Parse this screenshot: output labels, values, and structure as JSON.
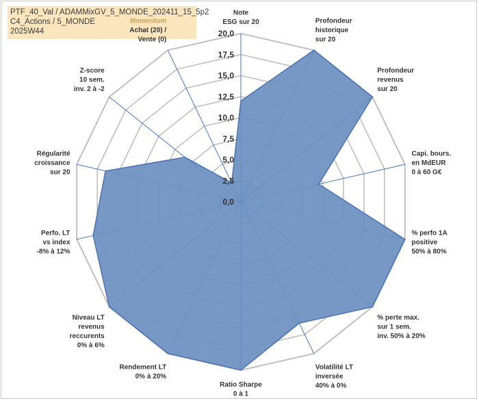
{
  "header": {
    "line1": "PTF_40_Val / ADAMMixGV_5_MONDE_202411_15_5p2",
    "line2": "C4_Actions / 5_MONDE",
    "line3": "2025W44"
  },
  "chart_data": {
    "type": "radar",
    "title": "PTF_40_Val / ADAMMixGV_5_MONDE_202411_15_5p2",
    "rlim": [
      0,
      20
    ],
    "rticks": [
      "0,0",
      "2,5",
      "5,0",
      "7,5",
      "10,0",
      "12,5",
      "15,0",
      "17,5",
      "20,0"
    ],
    "grid": true,
    "legend": "none",
    "colors": {
      "fill": "#6b8fbf",
      "stroke": "#4a72b0",
      "grid": "#bfbfbf",
      "axis": "#4472c4"
    },
    "categories": [
      [
        "Note",
        "ESG sur 20"
      ],
      [
        "Profondeur",
        "historique",
        "sur 20"
      ],
      [
        "Profondeur",
        "revenus",
        "sur 20"
      ],
      [
        "Capi. bours.",
        "en MdEUR",
        "0 à 60 G€"
      ],
      [
        "% perfo 1A",
        "positive",
        "50% à 80%"
      ],
      [
        "% perte max.",
        "sur 1 sem.",
        "inv. 50% à 20%"
      ],
      [
        "Volatilité LT",
        "inversée",
        "40% à 0%"
      ],
      [
        "Ratio Sharpe",
        "0 à 1"
      ],
      [
        "Rendement LT",
        "0% à 20%"
      ],
      [
        "Niveau LT",
        "revenus",
        "reccurents",
        "0% à 6%"
      ],
      [
        "Perfo. LT",
        "vs index",
        "-8% à 12%"
      ],
      [
        "Régularité",
        "croissance",
        "sur 20"
      ],
      [
        "Z-score",
        "10 sem.",
        "inv. 2 à -2"
      ],
      [
        "Momentum",
        "Achat (20) /",
        "Vente (0)"
      ]
    ],
    "series": [
      {
        "name": "PTF_40_Val",
        "values": [
          12,
          20,
          20,
          9.5,
          20,
          20,
          16,
          20,
          20,
          20,
          18,
          16.5,
          8.5,
          2.5
        ]
      }
    ]
  }
}
